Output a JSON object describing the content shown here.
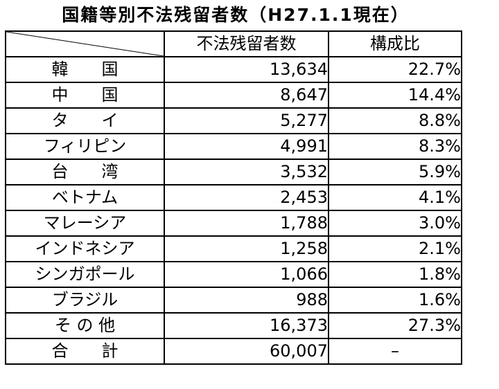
{
  "title": "国籍等別不法残留者数（H27.1.1現在）",
  "headers": {
    "corner": "",
    "count": "不法残留者数",
    "ratio": "構成比"
  },
  "rows": [
    {
      "country": "韓　　国",
      "count": "13,634",
      "ratio": "22.7%"
    },
    {
      "country": "中　　国",
      "count": "8,647",
      "ratio": "14.4%"
    },
    {
      "country": "タ　　イ",
      "count": "5,277",
      "ratio": "8.8%"
    },
    {
      "country": "フィリピン",
      "count": "4,991",
      "ratio": "8.3%"
    },
    {
      "country": "台　　湾",
      "count": "3,532",
      "ratio": "5.9%"
    },
    {
      "country": "ベトナム",
      "count": "2,453",
      "ratio": "4.1%"
    },
    {
      "country": "マレーシア",
      "count": "1,788",
      "ratio": "3.0%"
    },
    {
      "country": "インドネシア",
      "count": "1,258",
      "ratio": "2.1%"
    },
    {
      "country": "シンガポール",
      "count": "1,066",
      "ratio": "1.8%"
    },
    {
      "country": "ブラジル",
      "count": "988",
      "ratio": "1.6%"
    },
    {
      "country": "そ の 他",
      "count": "16,373",
      "ratio": "27.3%"
    }
  ],
  "total": {
    "country": "合　　計",
    "count": "60,007",
    "ratio": "–"
  }
}
